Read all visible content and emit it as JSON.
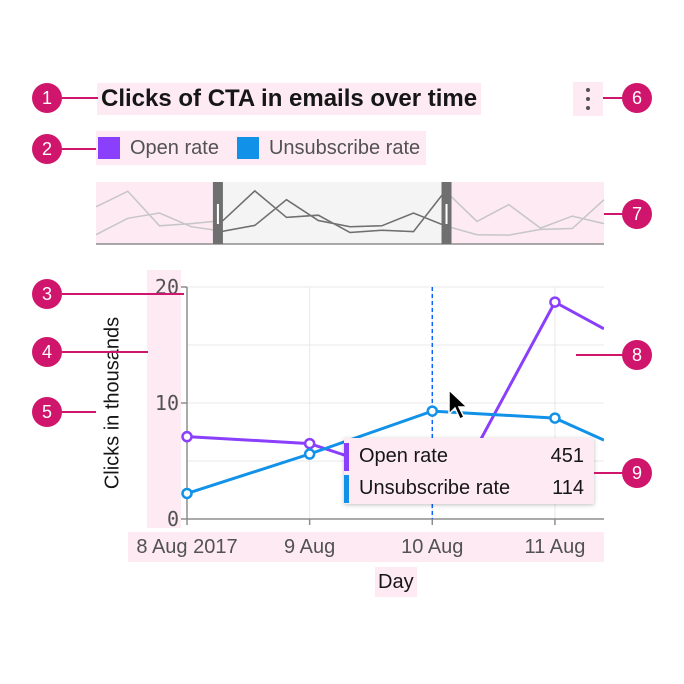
{
  "header": {
    "title": "Clicks of CTA in emails over time"
  },
  "legend": [
    {
      "label": "Open rate",
      "color": "#8a3ffc"
    },
    {
      "label": "Unsubscribe rate",
      "color": "#1192e8"
    }
  ],
  "menu": {
    "icon": "overflow-menu-icon"
  },
  "annotations": [
    "1",
    "2",
    "3",
    "4",
    "5",
    "6",
    "7",
    "8",
    "9"
  ],
  "tooltip": {
    "rows": [
      {
        "label": "Open rate",
        "value": "451",
        "color": "#8a3ffc"
      },
      {
        "label": "Unsubscribe rate",
        "value": "114",
        "color": "#1192e8"
      }
    ]
  },
  "chart_data": {
    "type": "line",
    "title": "Clicks of CTA in emails over time",
    "xlabel": "Day",
    "ylabel": "Clicks in thousands",
    "x": [
      0,
      1,
      2,
      3,
      3.4
    ],
    "x_range": [
      0,
      3.4
    ],
    "ylim": [
      0,
      20
    ],
    "yticks": [
      0,
      10,
      20
    ],
    "xticks": [
      {
        "value": 0,
        "label": "8 Aug 2017"
      },
      {
        "value": 1,
        "label": "9 Aug"
      },
      {
        "value": 2,
        "label": "10 Aug"
      },
      {
        "value": 3,
        "label": "11 Aug"
      }
    ],
    "grid": true,
    "series": [
      {
        "name": "Open rate",
        "color": "#8a3ffc",
        "points": [
          [
            0,
            7.1
          ],
          [
            1,
            6.5
          ],
          [
            1.4,
            5.1
          ],
          [
            2.3,
            5.0
          ],
          [
            3,
            18.7
          ],
          [
            3.4,
            16.4
          ]
        ],
        "markers": [
          0,
          1,
          4
        ]
      },
      {
        "name": "Unsubscribe rate",
        "color": "#1192e8",
        "points": [
          [
            0,
            2.2
          ],
          [
            1,
            5.6
          ],
          [
            2,
            9.3
          ],
          [
            3,
            8.7
          ],
          [
            3.4,
            6.8
          ]
        ],
        "markers": [
          0,
          1,
          2,
          3
        ]
      }
    ],
    "hover_x": 2,
    "navigator": {
      "series": [
        [
          8.4,
          11.9,
          4.1,
          4.6,
          5.3,
          12.0,
          6.0,
          6.5,
          2.6,
          3.1,
          2.8,
          12.0,
          5.1,
          8.9,
          3.6,
          6.3,
          4.6
        ],
        [
          2.1,
          5.8,
          7.0,
          3.9,
          2.9,
          4.2,
          10.0,
          5.3,
          3.9,
          4.1,
          7.0,
          4.1,
          2.1,
          2.0,
          3.3,
          3.5,
          10.0
        ]
      ],
      "selection": [
        0.24,
        0.69
      ]
    }
  }
}
